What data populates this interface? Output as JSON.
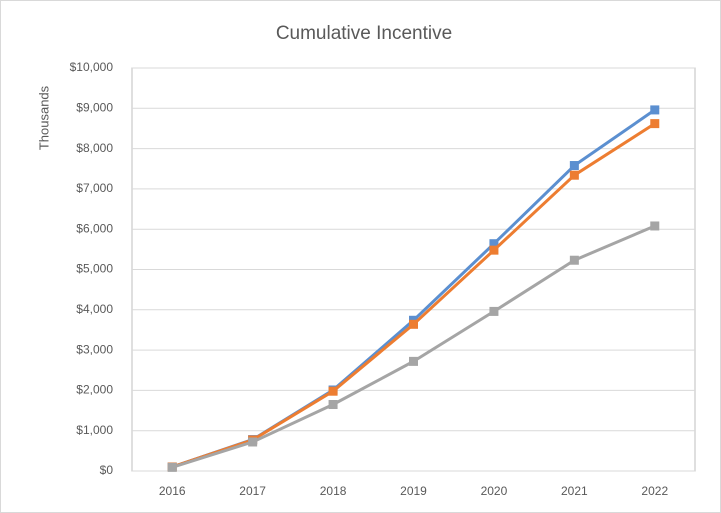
{
  "chart_data": {
    "type": "line",
    "title": "Cumulative Incentive",
    "y_label": "Thousands",
    "categories": [
      "2016",
      "2017",
      "2018",
      "2019",
      "2020",
      "2021",
      "2022"
    ],
    "series": [
      {
        "color": "#5b8fd0",
        "values": [
          100,
          780,
          2010,
          3740,
          5640,
          7580,
          8960
        ]
      },
      {
        "color": "#ed7d31",
        "values": [
          100,
          770,
          1980,
          3640,
          5480,
          7340,
          8620
        ]
      },
      {
        "color": "#a5a5a5",
        "values": [
          90,
          720,
          1650,
          2720,
          3960,
          5230,
          6080
        ]
      }
    ],
    "ylim": [
      0,
      10000
    ],
    "yticks": [
      {
        "value": 0,
        "label": "$0"
      },
      {
        "value": 1000,
        "label": "$1,000"
      },
      {
        "value": 2000,
        "label": "$2,000"
      },
      {
        "value": 3000,
        "label": "$3,000"
      },
      {
        "value": 4000,
        "label": "$4,000"
      },
      {
        "value": 5000,
        "label": "$5,000"
      },
      {
        "value": 6000,
        "label": "$6,000"
      },
      {
        "value": 7000,
        "label": "$7,000"
      },
      {
        "value": 8000,
        "label": "$8,000"
      },
      {
        "value": 9000,
        "label": "$9,000"
      },
      {
        "value": 10000,
        "label": "$10,000"
      }
    ],
    "grid": true
  }
}
